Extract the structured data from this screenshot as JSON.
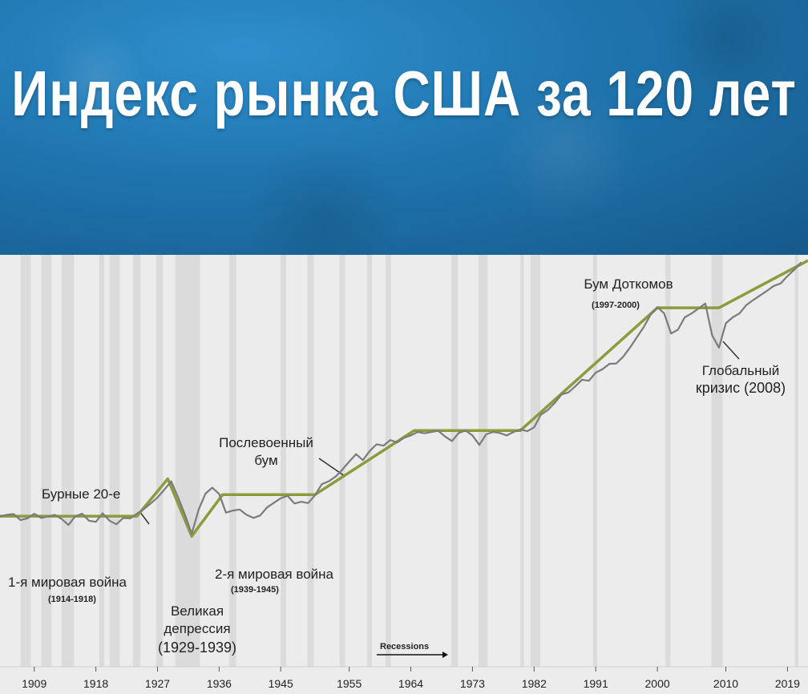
{
  "header": {
    "title": "Индекс рынка США за 120 лет"
  },
  "chart_data": {
    "type": "line",
    "title": "Индекс рынка США за 120 лет",
    "xlim": [
      1904,
      2022
    ],
    "x_ticks": [
      1909,
      1918,
      1927,
      1936,
      1945,
      1955,
      1964,
      1973,
      1982,
      1991,
      2000,
      2010,
      2019
    ],
    "y_scale": "log (unlabeled)",
    "grid": false,
    "legend": {
      "label": "Recessions",
      "placement": "bottom-center"
    },
    "series": [
      {
        "role": "index",
        "color": "#7b7b7b",
        "x": [
          1904,
          1905,
          1906,
          1907,
          1908,
          1909,
          1910,
          1911,
          1912,
          1913,
          1914,
          1915,
          1916,
          1917,
          1918,
          1919,
          1920,
          1921,
          1922,
          1923,
          1924,
          1925,
          1926,
          1927,
          1928,
          1929,
          1930,
          1931,
          1932,
          1933,
          1934,
          1935,
          1936,
          1937,
          1938,
          1939,
          1940,
          1941,
          1942,
          1943,
          1944,
          1945,
          1946,
          1947,
          1948,
          1949,
          1950,
          1951,
          1952,
          1953,
          1954,
          1955,
          1956,
          1957,
          1958,
          1959,
          1960,
          1961,
          1962,
          1963,
          1964,
          1965,
          1966,
          1967,
          1968,
          1969,
          1970,
          1971,
          1972,
          1973,
          1974,
          1975,
          1976,
          1977,
          1978,
          1979,
          1980,
          1981,
          1982,
          1983,
          1984,
          1985,
          1986,
          1987,
          1988,
          1989,
          1990,
          1991,
          1992,
          1993,
          1994,
          1995,
          1996,
          1997,
          1998,
          1999,
          2000,
          2001,
          2002,
          2003,
          2004,
          2005,
          2006,
          2007,
          2008,
          2009,
          2010,
          2011,
          2012,
          2013,
          2014,
          2015,
          2016,
          2017,
          2018,
          2019,
          2020,
          2021
        ],
        "y": [
          27.7,
          28.1,
          28.3,
          26.6,
          27.1,
          28.4,
          27.2,
          27.6,
          28.1,
          26.9,
          25.2,
          27.7,
          28.4,
          26.4,
          26.1,
          28.5,
          26.4,
          25.4,
          27.2,
          27.1,
          28.4,
          29.7,
          31.3,
          33.0,
          35.2,
          37.6,
          33.1,
          28.2,
          22.7,
          29.5,
          34.1,
          35.8,
          34.0,
          28.7,
          29.3,
          29.6,
          28.1,
          27.2,
          27.9,
          30.2,
          31.5,
          32.8,
          33.5,
          31.3,
          31.8,
          31.4,
          33.6,
          36.8,
          37.6,
          38.9,
          40.9,
          43.2,
          45.3,
          43.6,
          46.2,
          48.1,
          47.7,
          49.3,
          48.6,
          49.9,
          50.6,
          51.6,
          51.2,
          51.6,
          51.9,
          50.3,
          49.0,
          51.3,
          52.0,
          50.6,
          47.9,
          50.9,
          51.6,
          51.3,
          50.6,
          51.6,
          52.3,
          51.8,
          52.9,
          56.5,
          57.8,
          59.8,
          62.2,
          62.8,
          64.5,
          66.4,
          66.1,
          68.4,
          69.4,
          70.9,
          71.0,
          72.9,
          75.5,
          78.4,
          81.3,
          84.8,
          87.0,
          85.2,
          79.5,
          80.6,
          84.1,
          85.2,
          86.6,
          88.0,
          79.0,
          75.5,
          82.4,
          84.1,
          85.2,
          87.6,
          89.0,
          90.3,
          91.6,
          93.0,
          93.7,
          95.8,
          97.6,
          99.7
        ]
      },
      {
        "role": "trend",
        "color": "#8c9b3c",
        "x": [
          1904,
          1924,
          1928.5,
          1932,
          1936.5,
          1950,
          1964.5,
          1980,
          2000,
          2009,
          2022
        ],
        "y": [
          27.7,
          27.7,
          38.3,
          22.0,
          33.8,
          33.8,
          52.0,
          52.0,
          86.8,
          86.8,
          100.2
        ]
      }
    ],
    "recessions": [
      [
        1907,
        1908.5
      ],
      [
        1910,
        1911.5
      ],
      [
        1913,
        1914.8
      ],
      [
        1918.5,
        1919.2
      ],
      [
        1920,
        1921.5
      ],
      [
        1923.4,
        1924.5
      ],
      [
        1926.8,
        1927.8
      ],
      [
        1929.6,
        1933.2
      ],
      [
        1937.5,
        1938.5
      ],
      [
        1945,
        1945.8
      ],
      [
        1948.9,
        1949.8
      ],
      [
        1953.6,
        1954.4
      ],
      [
        1957.6,
        1958.3
      ],
      [
        1960.3,
        1961.1
      ],
      [
        1969.9,
        1970.9
      ],
      [
        1973.9,
        1975.2
      ],
      [
        1980,
        1980.5
      ],
      [
        1981.5,
        1982.9
      ],
      [
        1990.6,
        1991.2
      ],
      [
        2001.2,
        2001.9
      ],
      [
        2007.9,
        2009.5
      ],
      [
        2020.1,
        2020.4
      ]
    ],
    "annotations": [
      {
        "id": "ww1",
        "text": "1-я мировая война",
        "sub": "(1914-1918)"
      },
      {
        "id": "roaring20s",
        "text": "Бурные 20-е"
      },
      {
        "id": "depression",
        "text": [
          "Великая",
          "депрессия",
          "(1929-1939)"
        ]
      },
      {
        "id": "ww2",
        "text": "2-я мировая война",
        "sub": "(1939-1945)"
      },
      {
        "id": "postwar",
        "text": [
          "Послевоенный",
          "бум"
        ]
      },
      {
        "id": "dotcom",
        "text": "Бум Доткомов",
        "sub": "(1997-2000)"
      },
      {
        "id": "gfc",
        "text": [
          "Глобальный",
          "кризис (2008)"
        ]
      }
    ]
  }
}
